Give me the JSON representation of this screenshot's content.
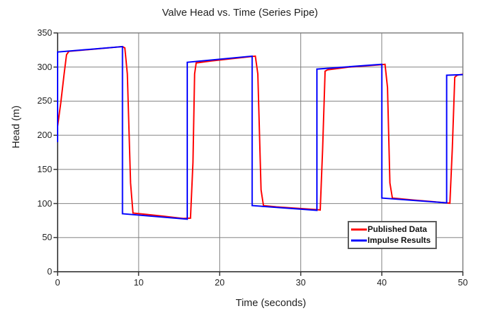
{
  "chart_data": {
    "type": "line",
    "title": "Valve Head vs. Time (Series Pipe)",
    "xlabel": "Time (seconds)",
    "ylabel": "Head (m)",
    "xlim": [
      0,
      50
    ],
    "ylim": [
      0,
      350
    ],
    "xticks": [
      0,
      10,
      20,
      30,
      40,
      50
    ],
    "yticks": [
      0,
      50,
      100,
      150,
      200,
      250,
      300,
      350
    ],
    "grid": true,
    "legend_position": "inside-bottom-right",
    "colors": {
      "background": "#FFFFFF",
      "grid": "#808080",
      "border": "#808080",
      "axis": "#333333",
      "text": "#1F1F1F"
    },
    "series": [
      {
        "name": "Published Data",
        "color": "#FF0000",
        "points": [
          [
            0,
            213
          ],
          [
            0.4,
            248
          ],
          [
            0.8,
            290
          ],
          [
            1.1,
            318
          ],
          [
            1.4,
            323
          ],
          [
            8,
            330
          ],
          [
            8.3,
            328
          ],
          [
            8.6,
            290
          ],
          [
            9.0,
            130
          ],
          [
            9.3,
            86
          ],
          [
            11,
            84
          ],
          [
            13,
            81.5
          ],
          [
            14.8,
            79
          ],
          [
            15.5,
            78
          ],
          [
            16.4,
            78.5
          ],
          [
            16.7,
            160
          ],
          [
            16.9,
            290
          ],
          [
            17.1,
            306
          ],
          [
            19,
            309
          ],
          [
            24,
            315.5
          ],
          [
            24.4,
            316
          ],
          [
            24.7,
            290
          ],
          [
            25.1,
            120
          ],
          [
            25.4,
            97
          ],
          [
            27,
            95
          ],
          [
            32,
            91
          ],
          [
            32.4,
            90.5
          ],
          [
            32.7,
            180
          ],
          [
            33.0,
            294
          ],
          [
            33.3,
            296
          ],
          [
            36,
            300
          ],
          [
            40,
            303.5
          ],
          [
            40.4,
            304
          ],
          [
            40.7,
            270
          ],
          [
            41.0,
            130
          ],
          [
            41.3,
            108
          ],
          [
            44,
            105
          ],
          [
            48,
            101
          ],
          [
            48.4,
            100.5
          ],
          [
            48.7,
            180
          ],
          [
            49.0,
            285
          ],
          [
            49.3,
            288
          ],
          [
            50,
            289.5
          ]
        ]
      },
      {
        "name": "Impulse Results",
        "color": "#0000FF",
        "points": [
          [
            0,
            190
          ],
          [
            0,
            322
          ],
          [
            8,
            330
          ],
          [
            8,
            85
          ],
          [
            16,
            77
          ],
          [
            16,
            307
          ],
          [
            24,
            316
          ],
          [
            24,
            97
          ],
          [
            32,
            90
          ],
          [
            32,
            297
          ],
          [
            40,
            304
          ],
          [
            40,
            108
          ],
          [
            48,
            101
          ],
          [
            48,
            288
          ],
          [
            50,
            289
          ]
        ]
      }
    ]
  }
}
